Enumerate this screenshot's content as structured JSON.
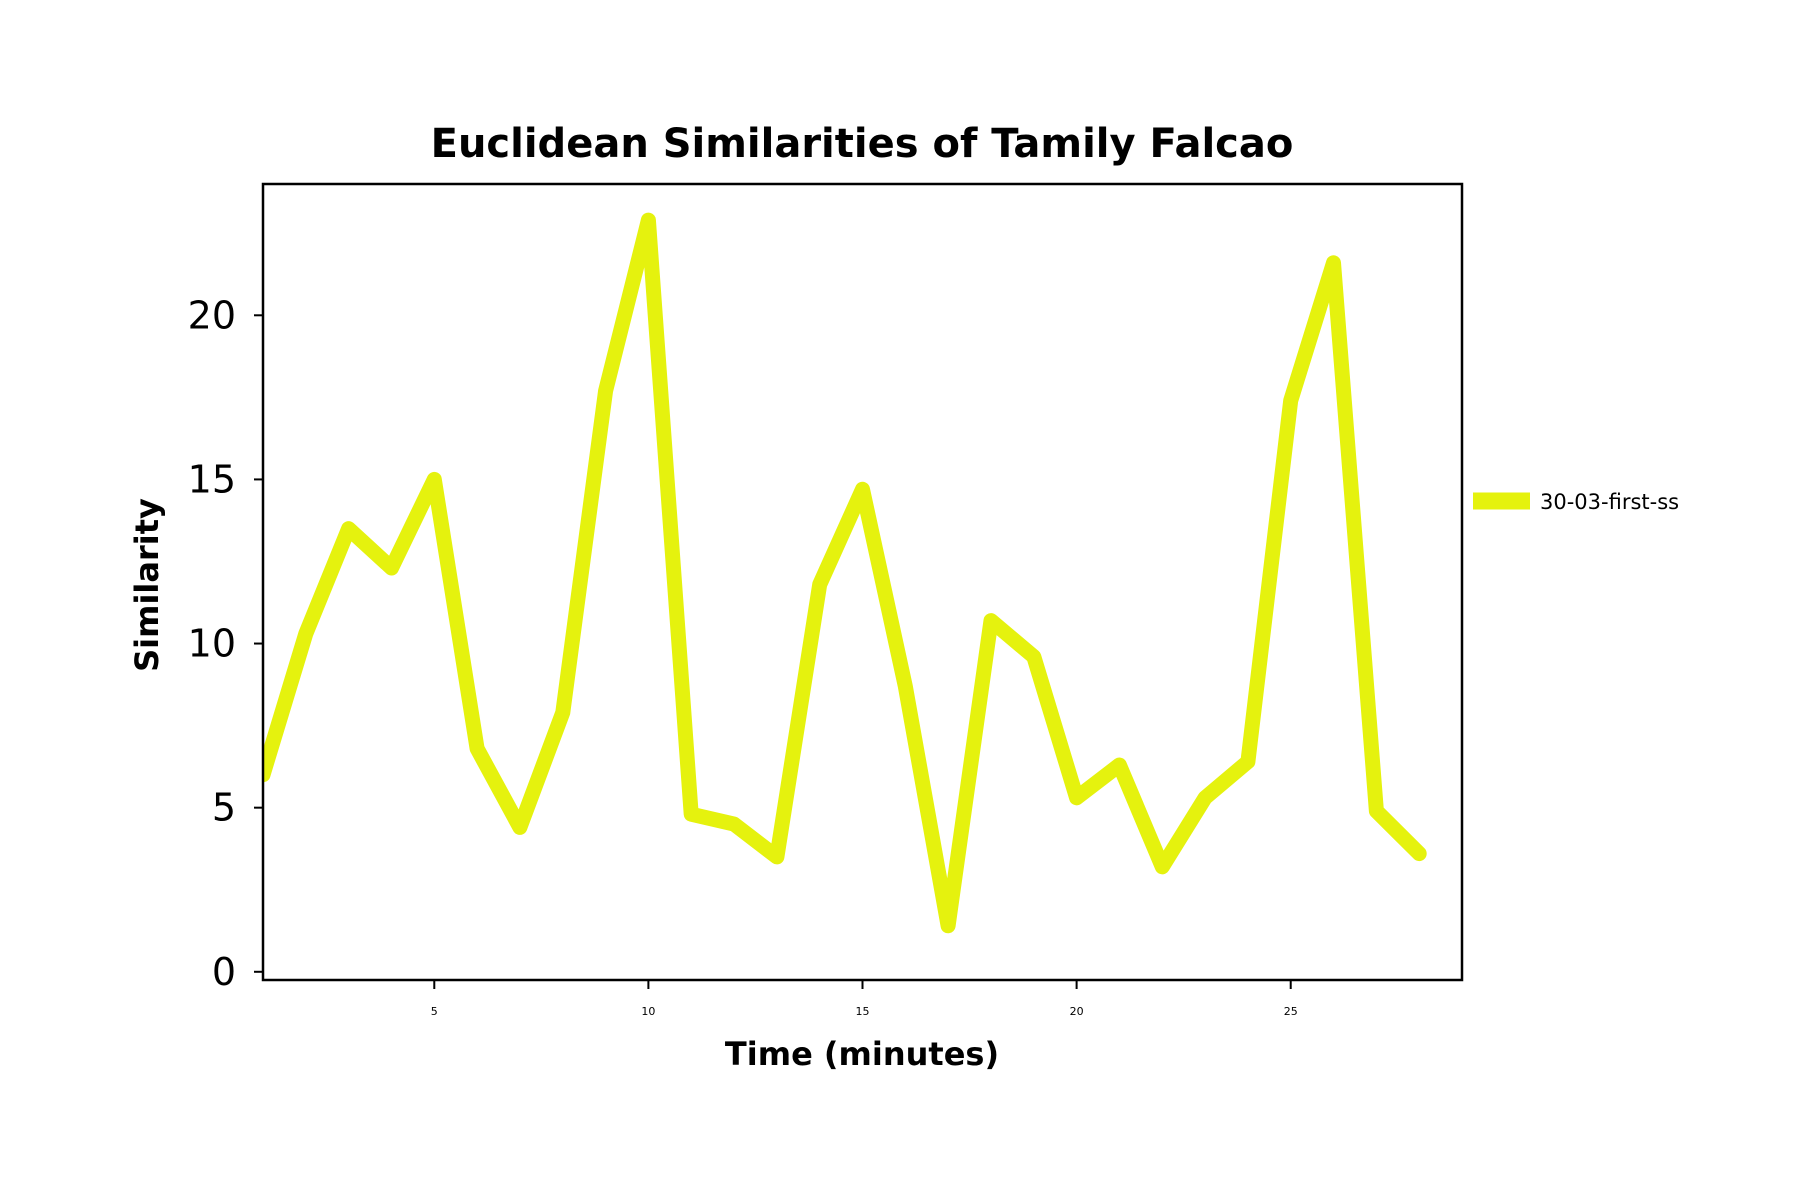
{
  "chart_data": {
    "type": "line",
    "title": "Euclidean Similarities of Tamily Falcao",
    "xlabel": "Time (minutes)",
    "ylabel": "Similarity",
    "xlim": [
      1,
      29
    ],
    "ylim": [
      -0.25,
      24
    ],
    "xticks": [
      5,
      10,
      15,
      20,
      25
    ],
    "xtick_labels": [
      "5",
      "10",
      "15",
      "20",
      "25"
    ],
    "yticks": [
      0,
      5,
      10,
      15,
      20
    ],
    "ytick_labels": [
      "0",
      "5",
      "10",
      "15",
      "20"
    ],
    "grid": false,
    "legend_position": "outside-right",
    "series": [
      {
        "name": "30-03-first-ss",
        "color": "#e5f20e",
        "x": [
          1,
          2,
          3,
          4,
          5,
          6,
          7,
          8,
          9,
          10,
          11,
          12,
          13,
          14,
          15,
          16,
          17,
          18,
          19,
          20,
          21,
          22,
          23,
          24,
          25,
          26,
          27,
          28
        ],
        "y": [
          6.0,
          10.3,
          13.5,
          12.3,
          15.0,
          6.8,
          4.4,
          7.9,
          17.7,
          22.9,
          4.8,
          4.5,
          3.5,
          11.8,
          14.7,
          8.7,
          1.4,
          10.7,
          9.6,
          5.3,
          6.3,
          3.2,
          5.3,
          6.4,
          17.4,
          21.6,
          4.9,
          3.6
        ]
      }
    ]
  }
}
